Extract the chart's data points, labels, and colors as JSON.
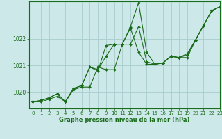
{
  "title": "Graphe pression niveau de la mer (hPa)",
  "background_color": "#cce8e8",
  "grid_color": "#aacccc",
  "line_color": "#1a6b1a",
  "marker_color": "#1a6b1a",
  "xlim": [
    -0.5,
    23
  ],
  "ylim": [
    1019.4,
    1023.4
  ],
  "yticks": [
    1020,
    1021,
    1022
  ],
  "xticks": [
    0,
    1,
    2,
    3,
    4,
    5,
    6,
    7,
    8,
    9,
    10,
    11,
    12,
    13,
    14,
    15,
    16,
    17,
    18,
    19,
    20,
    21,
    22,
    23
  ],
  "hours": [
    0,
    1,
    2,
    3,
    4,
    5,
    6,
    7,
    8,
    9,
    10,
    11,
    12,
    13,
    14,
    15,
    16,
    17,
    18,
    19,
    20,
    21,
    22,
    23
  ],
  "series1": [
    1019.65,
    1019.65,
    1019.75,
    1019.85,
    1019.65,
    1020.1,
    1020.2,
    1020.2,
    1020.95,
    1020.85,
    1020.85,
    1021.8,
    1021.8,
    1022.45,
    1021.15,
    1021.05,
    1021.1,
    1021.35,
    1021.3,
    1021.3,
    1021.95,
    1022.5,
    1023.05,
    1023.2
  ],
  "series2": [
    1019.65,
    1019.7,
    1019.8,
    1019.95,
    1019.65,
    1020.15,
    1020.25,
    1020.95,
    1020.85,
    1021.35,
    1021.8,
    1021.8,
    1022.45,
    1023.35,
    1021.5,
    1021.05,
    1021.1,
    1021.35,
    1021.3,
    1021.45,
    1021.95,
    1022.5,
    1023.05,
    1023.2
  ],
  "series3": [
    1019.65,
    1019.7,
    1019.8,
    1019.95,
    1019.65,
    1020.15,
    1020.25,
    1020.95,
    1020.8,
    1021.75,
    1021.8,
    1021.8,
    1022.4,
    1021.5,
    1021.05,
    1021.05,
    1021.1,
    1021.35,
    1021.3,
    1021.4,
    1021.95,
    1022.5,
    1023.05,
    1023.2
  ],
  "marker_size": 2.0,
  "line_width": 0.8,
  "xlabel_fontsize": 6.0,
  "tick_fontsize": 5.0
}
